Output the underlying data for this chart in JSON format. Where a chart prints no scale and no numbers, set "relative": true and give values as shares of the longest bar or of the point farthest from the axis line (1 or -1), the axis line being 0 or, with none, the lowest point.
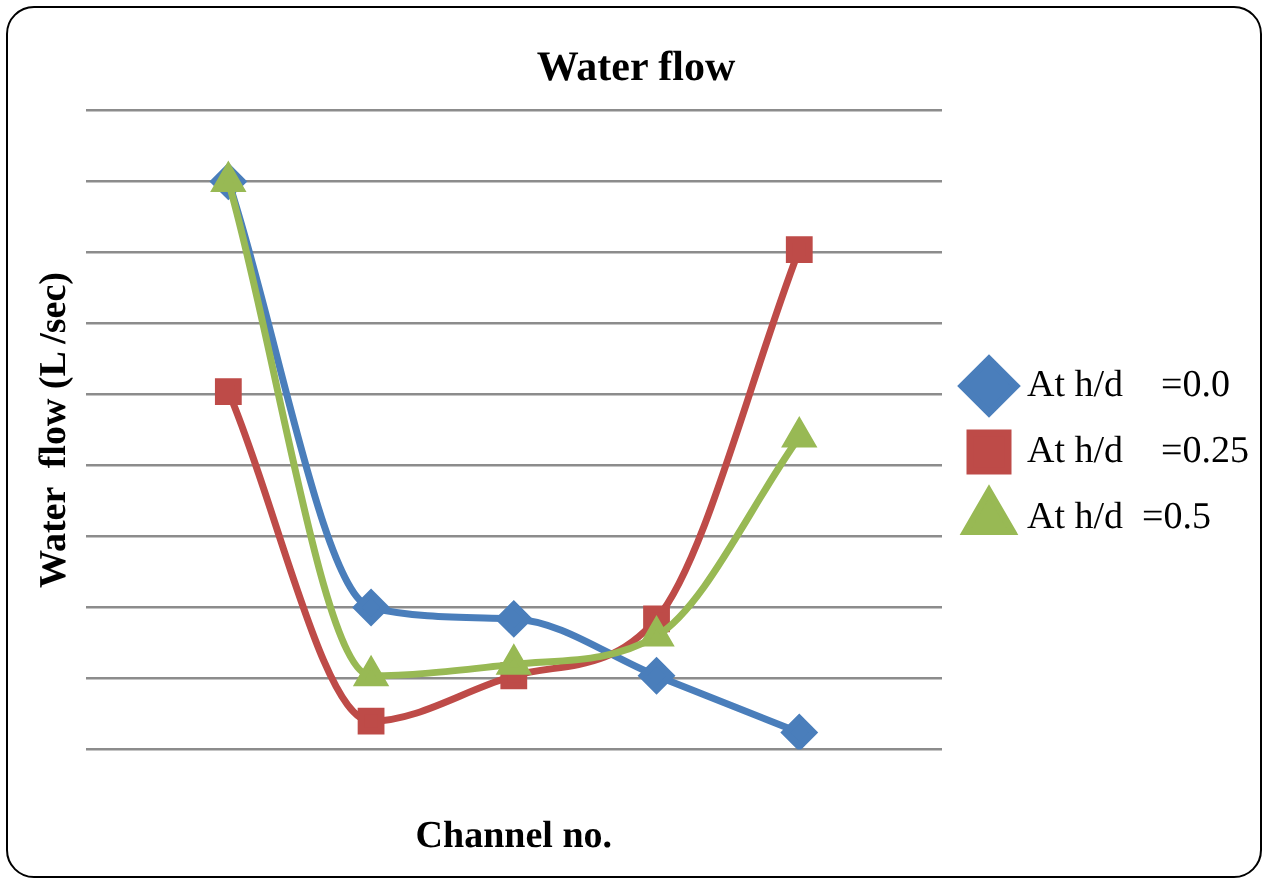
{
  "chart_data": {
    "type": "line",
    "title": "Water flow",
    "xlabel": "Channel no.",
    "ylabel": "Water  flow (L /sec)",
    "relative": true,
    "grid": "y",
    "legend": "right",
    "categories": [
      null,
      null,
      null,
      null,
      null
    ],
    "series": [
      {
        "name": "At h/d    =0.0",
        "color": "#4a7ebb",
        "marker": "diamond",
        "values": [
          1,
          0.25,
          0.23,
          0.13,
          0.03
        ]
      },
      {
        "name": "At h/d    =0.25",
        "color": "#be4b48",
        "marker": "square",
        "values": [
          0.63,
          0.05,
          0.13,
          0.23,
          0.88
        ]
      },
      {
        "name": "At h/d  =0.5",
        "color": "#98b954",
        "marker": "triangle",
        "values": [
          1,
          0.13,
          0.15,
          0.2,
          0.55
        ]
      }
    ]
  }
}
